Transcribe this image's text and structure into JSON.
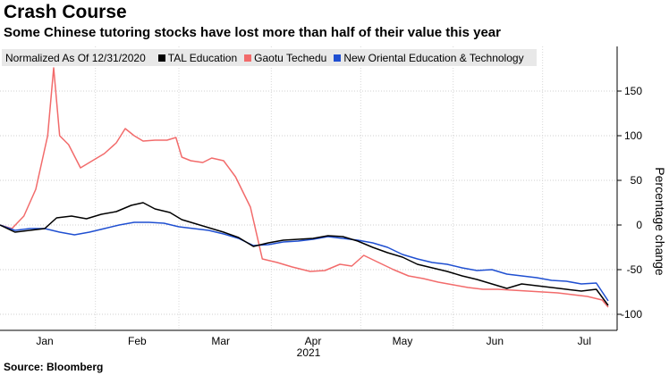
{
  "title": "Crash Course",
  "subtitle": "Some Chinese tutoring stocks have lost more than half of their value this year",
  "source": "Source: Bloomberg",
  "legend": {
    "note": "Normalized As Of 12/31/2020",
    "items": [
      {
        "label": "TAL Education",
        "color": "#000000"
      },
      {
        "label": "Gaotu Techedu",
        "color": "#f26b6b"
      },
      {
        "label": "New Oriental Education & Technology",
        "color": "#1f4fd1"
      }
    ]
  },
  "chart_data": {
    "type": "line",
    "ylabel": "Percentage change",
    "xlabel": "",
    "year_label": "2021",
    "x_ticks": [
      {
        "label": "Jan",
        "x": "2021-01-15"
      },
      {
        "label": "Feb",
        "x": "2021-02-15"
      },
      {
        "label": "Mar",
        "x": "2021-03-15"
      },
      {
        "label": "Apr",
        "x": "2021-04-15"
      },
      {
        "label": "May",
        "x": "2021-05-15"
      },
      {
        "label": "Jun",
        "x": "2021-06-15"
      },
      {
        "label": "Jul",
        "x": "2021-07-15"
      }
    ],
    "x_range": [
      "2020-12-31",
      "2021-07-26"
    ],
    "y_ticks": [
      150,
      100,
      50,
      0,
      -50,
      -100
    ],
    "ylim": [
      -118,
      200
    ],
    "grid": true,
    "legend_position": "top-left",
    "series": [
      {
        "name": "TAL Education",
        "color": "#000000",
        "points": [
          [
            "2020-12-31",
            0
          ],
          [
            "2021-01-05",
            -8
          ],
          [
            "2021-01-10",
            -6
          ],
          [
            "2021-01-15",
            -4
          ],
          [
            "2021-01-19",
            8
          ],
          [
            "2021-01-24",
            10
          ],
          [
            "2021-01-29",
            7
          ],
          [
            "2021-02-03",
            12
          ],
          [
            "2021-02-08",
            15
          ],
          [
            "2021-02-13",
            22
          ],
          [
            "2021-02-17",
            25
          ],
          [
            "2021-02-21",
            18
          ],
          [
            "2021-02-26",
            14
          ],
          [
            "2021-03-02",
            6
          ],
          [
            "2021-03-06",
            2
          ],
          [
            "2021-03-11",
            -3
          ],
          [
            "2021-03-16",
            -8
          ],
          [
            "2021-03-21",
            -14
          ],
          [
            "2021-03-26",
            -24
          ],
          [
            "2021-03-31",
            -20
          ],
          [
            "2021-04-05",
            -17
          ],
          [
            "2021-04-10",
            -16
          ],
          [
            "2021-04-15",
            -15
          ],
          [
            "2021-04-20",
            -12
          ],
          [
            "2021-04-25",
            -13
          ],
          [
            "2021-04-30",
            -18
          ],
          [
            "2021-05-05",
            -25
          ],
          [
            "2021-05-10",
            -31
          ],
          [
            "2021-05-15",
            -36
          ],
          [
            "2021-05-20",
            -44
          ],
          [
            "2021-05-25",
            -48
          ],
          [
            "2021-05-30",
            -52
          ],
          [
            "2021-06-04",
            -57
          ],
          [
            "2021-06-09",
            -61
          ],
          [
            "2021-06-14",
            -66
          ],
          [
            "2021-06-19",
            -71
          ],
          [
            "2021-06-24",
            -66
          ],
          [
            "2021-06-29",
            -68
          ],
          [
            "2021-07-04",
            -70
          ],
          [
            "2021-07-09",
            -72
          ],
          [
            "2021-07-14",
            -74
          ],
          [
            "2021-07-19",
            -72
          ],
          [
            "2021-07-23",
            -90
          ]
        ]
      },
      {
        "name": "Gaotu Techedu",
        "color": "#f26b6b",
        "points": [
          [
            "2020-12-31",
            0
          ],
          [
            "2021-01-04",
            -4
          ],
          [
            "2021-01-08",
            10
          ],
          [
            "2021-01-12",
            40
          ],
          [
            "2021-01-16",
            100
          ],
          [
            "2021-01-18",
            176
          ],
          [
            "2021-01-20",
            100
          ],
          [
            "2021-01-23",
            90
          ],
          [
            "2021-01-27",
            64
          ],
          [
            "2021-01-31",
            72
          ],
          [
            "2021-02-04",
            80
          ],
          [
            "2021-02-08",
            92
          ],
          [
            "2021-02-11",
            108
          ],
          [
            "2021-02-14",
            100
          ],
          [
            "2021-02-17",
            94
          ],
          [
            "2021-02-21",
            95
          ],
          [
            "2021-02-25",
            95
          ],
          [
            "2021-02-28",
            98
          ],
          [
            "2021-03-02",
            76
          ],
          [
            "2021-03-05",
            72
          ],
          [
            "2021-03-09",
            70
          ],
          [
            "2021-03-12",
            75
          ],
          [
            "2021-03-16",
            72
          ],
          [
            "2021-03-20",
            54
          ],
          [
            "2021-03-25",
            20
          ],
          [
            "2021-03-29",
            -38
          ],
          [
            "2021-04-03",
            -42
          ],
          [
            "2021-04-08",
            -47
          ],
          [
            "2021-04-14",
            -52
          ],
          [
            "2021-04-19",
            -51
          ],
          [
            "2021-04-24",
            -44
          ],
          [
            "2021-04-28",
            -46
          ],
          [
            "2021-05-02",
            -34
          ],
          [
            "2021-05-07",
            -42
          ],
          [
            "2021-05-12",
            -50
          ],
          [
            "2021-05-17",
            -57
          ],
          [
            "2021-05-22",
            -60
          ],
          [
            "2021-05-27",
            -64
          ],
          [
            "2021-06-01",
            -67
          ],
          [
            "2021-06-06",
            -70
          ],
          [
            "2021-06-11",
            -72
          ],
          [
            "2021-06-16",
            -72
          ],
          [
            "2021-06-21",
            -73
          ],
          [
            "2021-06-26",
            -74
          ],
          [
            "2021-07-01",
            -75
          ],
          [
            "2021-07-06",
            -76
          ],
          [
            "2021-07-11",
            -78
          ],
          [
            "2021-07-16",
            -80
          ],
          [
            "2021-07-21",
            -84
          ],
          [
            "2021-07-23",
            -92
          ]
        ]
      },
      {
        "name": "New Oriental Education & Technology",
        "color": "#1f4fd1",
        "points": [
          [
            "2020-12-31",
            0
          ],
          [
            "2021-01-05",
            -6
          ],
          [
            "2021-01-10",
            -4
          ],
          [
            "2021-01-15",
            -4
          ],
          [
            "2021-01-20",
            -8
          ],
          [
            "2021-01-25",
            -11
          ],
          [
            "2021-01-30",
            -8
          ],
          [
            "2021-02-04",
            -4
          ],
          [
            "2021-02-09",
            0
          ],
          [
            "2021-02-14",
            3
          ],
          [
            "2021-02-19",
            3
          ],
          [
            "2021-02-24",
            2
          ],
          [
            "2021-03-01",
            -2
          ],
          [
            "2021-03-06",
            -4
          ],
          [
            "2021-03-11",
            -6
          ],
          [
            "2021-03-16",
            -10
          ],
          [
            "2021-03-21",
            -15
          ],
          [
            "2021-03-26",
            -23
          ],
          [
            "2021-03-31",
            -22
          ],
          [
            "2021-04-05",
            -19
          ],
          [
            "2021-04-10",
            -18
          ],
          [
            "2021-04-15",
            -16
          ],
          [
            "2021-04-20",
            -13
          ],
          [
            "2021-04-25",
            -15
          ],
          [
            "2021-04-30",
            -17
          ],
          [
            "2021-05-05",
            -20
          ],
          [
            "2021-05-10",
            -25
          ],
          [
            "2021-05-15",
            -33
          ],
          [
            "2021-05-20",
            -38
          ],
          [
            "2021-05-25",
            -42
          ],
          [
            "2021-05-30",
            -44
          ],
          [
            "2021-06-04",
            -48
          ],
          [
            "2021-06-09",
            -51
          ],
          [
            "2021-06-14",
            -50
          ],
          [
            "2021-06-19",
            -55
          ],
          [
            "2021-06-24",
            -57
          ],
          [
            "2021-06-29",
            -59
          ],
          [
            "2021-07-04",
            -62
          ],
          [
            "2021-07-09",
            -63
          ],
          [
            "2021-07-14",
            -66
          ],
          [
            "2021-07-19",
            -65
          ],
          [
            "2021-07-23",
            -85
          ]
        ]
      }
    ]
  }
}
